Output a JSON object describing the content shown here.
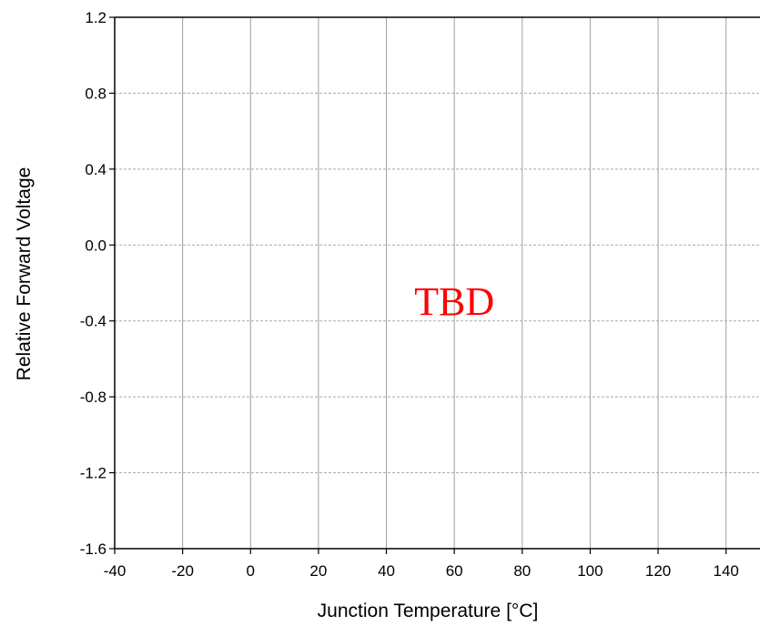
{
  "chart_data": {
    "type": "line",
    "title": "",
    "xlabel": "Junction Temperature [°C]",
    "ylabel": "Relative Forward Voltage",
    "xlim": [
      -40,
      150
    ],
    "ylim": [
      -1.6,
      1.2
    ],
    "x_ticks": [
      -40,
      -20,
      0,
      20,
      40,
      60,
      80,
      100,
      120,
      140
    ],
    "x_tick_labels": [
      "-40",
      "-20",
      "0",
      "20",
      "40",
      "60",
      "80",
      "100",
      "120",
      "140"
    ],
    "y_ticks": [
      1.2,
      0.8,
      0.4,
      0.0,
      -0.4,
      -0.8,
      -1.2,
      -1.6
    ],
    "y_tick_labels": [
      "1.2",
      "0.8",
      "0.4",
      "0.0",
      "-0.4",
      "-0.8",
      "-1.2",
      "-1.6"
    ],
    "series": [],
    "grid": true,
    "annotation": {
      "text": "TBD",
      "x": 60,
      "y": -0.3,
      "color": "#ff0000"
    }
  }
}
